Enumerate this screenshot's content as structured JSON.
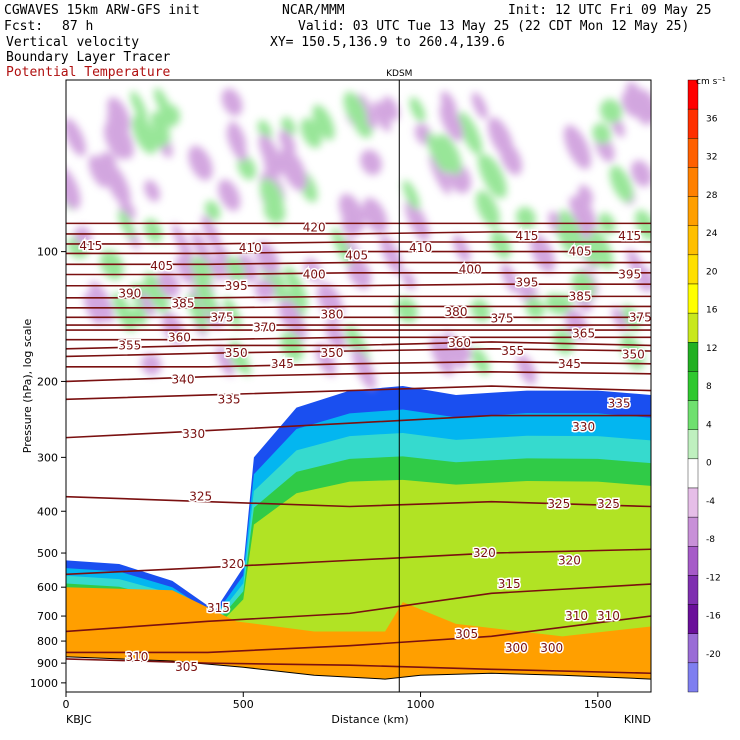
{
  "header": {
    "model": "CGWAVES 15km ARW-GFS init",
    "org": "NCAR/MMM",
    "init": "Init: 12 UTC Fri 09 May 25",
    "fcst_label": "Fcst:",
    "fcst_value": "87 h",
    "valid": "Valid: 03 UTC Tue 13 May 25 (22 CDT Mon 12 May 25)",
    "field1": "Vertical velocity",
    "field2": "Boundary Layer Tracer",
    "field3": "Potential Temperature",
    "xy": "XY= 150.5,136.9 to 260.4,139.6"
  },
  "colors": {
    "theta": "#7a1010",
    "field3_text": "#b01010"
  },
  "chart_data": {
    "type": "heatmap",
    "ylabel": "Pressure (hPa), log scale",
    "xlabel": "Distance (km)",
    "ylog": true,
    "xlim": [
      0,
      1650
    ],
    "ylim": [
      1050,
      40
    ],
    "x_ticks": [
      0,
      500,
      1000,
      1500
    ],
    "y_ticks": [
      100,
      200,
      300,
      400,
      500,
      600,
      700,
      800,
      900,
      1000
    ],
    "left_station": "KBJC",
    "right_station": "KIND",
    "marker": {
      "label": "KDSM",
      "x": 940
    },
    "colorbar": {
      "unit": "cm s⁻¹",
      "levels": [
        -20,
        -16,
        -12,
        -8,
        -4,
        0,
        4,
        8,
        12,
        16,
        20,
        24,
        28,
        32,
        36
      ],
      "colors": [
        "#7f7ff0",
        "#9a6cd6",
        "#6a0f9a",
        "#7f2fb0",
        "#a65bc8",
        "#c890d8",
        "#e6bee8",
        "#ffffff",
        "#bff0bf",
        "#6fe06f",
        "#2fc82f",
        "#22b022",
        "#c8e81e",
        "#ffff00",
        "#ffdf00",
        "#ffbf00",
        "#ff9f00",
        "#ff8000",
        "#ff6000",
        "#ff3000",
        "#ff0000"
      ]
    },
    "isentropes": [
      {
        "label": "305",
        "p": [
          880,
          900,
          910,
          930,
          950
        ]
      },
      {
        "label": "310",
        "p": [
          850,
          850,
          820,
          780,
          700
        ]
      },
      {
        "label": "315",
        "p": [
          760,
          720,
          690,
          620,
          590
        ]
      },
      {
        "label": "320",
        "p": [
          560,
          540,
          520,
          500,
          490
        ]
      },
      {
        "label": "325",
        "p": [
          370,
          380,
          390,
          380,
          390
        ]
      },
      {
        "label": "330",
        "p": [
          270,
          260,
          250,
          240,
          240
        ]
      },
      {
        "label": "335",
        "p": [
          220,
          215,
          210,
          205,
          210
        ]
      },
      {
        "label": "340",
        "p": [
          200,
          195,
          192,
          190,
          192
        ]
      },
      {
        "label": "345",
        "p": [
          185,
          185,
          182,
          180,
          182
        ]
      },
      {
        "label": "350",
        "p": [
          175,
          172,
          170,
          168,
          170
        ]
      },
      {
        "label": "355",
        "p": [
          168,
          165,
          165,
          162,
          165
        ]
      },
      {
        "label": "360",
        "p": [
          160,
          160,
          158,
          158,
          158
        ]
      },
      {
        "label": "365",
        "p": [
          152,
          152,
          152,
          152,
          152
        ]
      },
      {
        "label": "370",
        "p": [
          148,
          148,
          148,
          148,
          148
        ]
      },
      {
        "label": "375",
        "p": [
          142,
          142,
          142,
          142,
          142
        ]
      },
      {
        "label": "380",
        "p": [
          135,
          135,
          134,
          134,
          134
        ]
      },
      {
        "label": "385",
        "p": [
          128,
          128,
          127,
          127,
          127
        ]
      },
      {
        "label": "390",
        "p": [
          120,
          120,
          120,
          119,
          119
        ]
      },
      {
        "label": "395",
        "p": [
          113,
          113,
          112,
          112,
          112
        ]
      },
      {
        "label": "400",
        "p": [
          107,
          107,
          106,
          106,
          106
        ]
      },
      {
        "label": "405",
        "p": [
          101,
          101,
          100,
          100,
          100
        ]
      },
      {
        "label": "410",
        "p": [
          96,
          96,
          95,
          95,
          95
        ]
      },
      {
        "label": "415",
        "p": [
          91,
          91,
          91,
          90,
          90
        ]
      },
      {
        "label": "420",
        "p": [
          86,
          86,
          86,
          86,
          86
        ]
      }
    ],
    "isentrope_x": [
      0,
      400,
      800,
      1200,
      1650
    ],
    "theta_labels": [
      {
        "text": "415",
        "x": 70,
        "p": 97
      },
      {
        "text": "405",
        "x": 270,
        "p": 108
      },
      {
        "text": "410",
        "x": 520,
        "p": 98
      },
      {
        "text": "420",
        "x": 700,
        "p": 88
      },
      {
        "text": "405",
        "x": 820,
        "p": 102
      },
      {
        "text": "410",
        "x": 1000,
        "p": 98
      },
      {
        "text": "415",
        "x": 1300,
        "p": 92
      },
      {
        "text": "405",
        "x": 1450,
        "p": 100
      },
      {
        "text": "415",
        "x": 1590,
        "p": 92
      },
      {
        "text": "390",
        "x": 180,
        "p": 125
      },
      {
        "text": "385",
        "x": 330,
        "p": 132
      },
      {
        "text": "395",
        "x": 480,
        "p": 120
      },
      {
        "text": "400",
        "x": 700,
        "p": 113
      },
      {
        "text": "400",
        "x": 1140,
        "p": 110
      },
      {
        "text": "395",
        "x": 1300,
        "p": 118
      },
      {
        "text": "385",
        "x": 1450,
        "p": 127
      },
      {
        "text": "395",
        "x": 1590,
        "p": 113
      },
      {
        "text": "375",
        "x": 440,
        "p": 142
      },
      {
        "text": "370",
        "x": 560,
        "p": 150
      },
      {
        "text": "380",
        "x": 750,
        "p": 140
      },
      {
        "text": "380",
        "x": 1100,
        "p": 138
      },
      {
        "text": "375",
        "x": 1230,
        "p": 143
      },
      {
        "text": "375",
        "x": 1620,
        "p": 142
      },
      {
        "text": "355",
        "x": 180,
        "p": 165
      },
      {
        "text": "360",
        "x": 320,
        "p": 158
      },
      {
        "text": "350",
        "x": 480,
        "p": 172
      },
      {
        "text": "345",
        "x": 610,
        "p": 182
      },
      {
        "text": "350",
        "x": 750,
        "p": 172
      },
      {
        "text": "360",
        "x": 1110,
        "p": 163
      },
      {
        "text": "355",
        "x": 1260,
        "p": 170
      },
      {
        "text": "365",
        "x": 1460,
        "p": 155
      },
      {
        "text": "345",
        "x": 1420,
        "p": 182
      },
      {
        "text": "350",
        "x": 1600,
        "p": 173
      },
      {
        "text": "340",
        "x": 330,
        "p": 198
      },
      {
        "text": "335",
        "x": 460,
        "p": 220
      },
      {
        "text": "330",
        "x": 360,
        "p": 265
      },
      {
        "text": "325",
        "x": 380,
        "p": 370
      },
      {
        "text": "325",
        "x": 1390,
        "p": 385
      },
      {
        "text": "325",
        "x": 1530,
        "p": 385
      },
      {
        "text": "320",
        "x": 470,
        "p": 530
      },
      {
        "text": "320",
        "x": 1180,
        "p": 500
      },
      {
        "text": "320",
        "x": 1420,
        "p": 520
      },
      {
        "text": "315",
        "x": 430,
        "p": 670
      },
      {
        "text": "315",
        "x": 1250,
        "p": 590
      },
      {
        "text": "310",
        "x": 200,
        "p": 870
      },
      {
        "text": "310",
        "x": 1440,
        "p": 700
      },
      {
        "text": "310",
        "x": 1530,
        "p": 700
      },
      {
        "text": "305",
        "x": 340,
        "p": 920
      },
      {
        "text": "305",
        "x": 1130,
        "p": 770
      },
      {
        "text": "300",
        "x": 1270,
        "p": 830
      },
      {
        "text": "300",
        "x": 1370,
        "p": 830
      },
      {
        "text": "330",
        "x": 1460,
        "p": 255
      },
      {
        "text": "335",
        "x": 1560,
        "p": 225
      }
    ],
    "terrain_p": [
      {
        "x": 0,
        "p": 870
      },
      {
        "x": 150,
        "p": 880
      },
      {
        "x": 300,
        "p": 890
      },
      {
        "x": 500,
        "p": 920
      },
      {
        "x": 700,
        "p": 960
      },
      {
        "x": 900,
        "p": 980
      },
      {
        "x": 1000,
        "p": 960
      },
      {
        "x": 1200,
        "p": 950
      },
      {
        "x": 1400,
        "p": 960
      },
      {
        "x": 1650,
        "p": 980
      }
    ],
    "bl_top_p": [
      {
        "x": 0,
        "p": 520
      },
      {
        "x": 150,
        "p": 530
      },
      {
        "x": 300,
        "p": 580
      },
      {
        "x": 420,
        "p": 680
      },
      {
        "x": 500,
        "p": 540
      },
      {
        "x": 530,
        "p": 300
      },
      {
        "x": 650,
        "p": 230
      },
      {
        "x": 800,
        "p": 210
      },
      {
        "x": 950,
        "p": 205
      },
      {
        "x": 1100,
        "p": 215
      },
      {
        "x": 1300,
        "p": 210
      },
      {
        "x": 1500,
        "p": 210
      },
      {
        "x": 1650,
        "p": 215
      }
    ]
  }
}
